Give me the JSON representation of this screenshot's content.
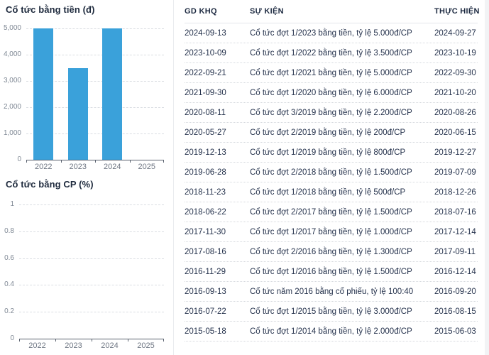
{
  "chart_data": [
    {
      "type": "bar",
      "title": "Cổ tức bằng tiền (đ)",
      "categories": [
        "2022",
        "2023",
        "2024",
        "2025"
      ],
      "values": [
        5000,
        3500,
        5000,
        0
      ],
      "ylim": [
        0,
        5000
      ],
      "yticks": [
        {
          "label": "5,000",
          "value": 5000
        },
        {
          "label": "4,000",
          "value": 4000
        },
        {
          "label": "3,000",
          "value": 3000
        },
        {
          "label": "2,000",
          "value": 2000
        },
        {
          "label": "1,000",
          "value": 1000
        },
        {
          "label": "0",
          "value": 0
        }
      ],
      "grid": "dashed-horizontal",
      "legend": "none",
      "bar_color": "#3aa1da"
    },
    {
      "type": "bar",
      "title": "Cổ tức bằng CP (%)",
      "categories": [
        "2022",
        "2023",
        "2024",
        "2025"
      ],
      "values": [
        0,
        0,
        0,
        0
      ],
      "ylim": [
        0,
        1
      ],
      "yticks": [
        {
          "label": "1",
          "value": 1
        },
        {
          "label": "0.8",
          "value": 0.8
        },
        {
          "label": "0.6",
          "value": 0.6
        },
        {
          "label": "0.4",
          "value": 0.4
        },
        {
          "label": "0.2",
          "value": 0.2
        },
        {
          "label": "0",
          "value": 0
        }
      ],
      "grid": "dashed-horizontal",
      "legend": "none",
      "bar_color": "#3aa1da"
    }
  ],
  "table": {
    "columns": [
      "GD KHQ",
      "SỰ KIỆN",
      "THỰC HIỆN"
    ],
    "rows": [
      [
        "2024-09-13",
        "Cổ tức đợt 1/2023 bằng tiền, tỷ lệ 5.000đ/CP",
        "2024-09-27"
      ],
      [
        "2023-10-09",
        "Cổ tức đợt 1/2022 bằng tiền, tỷ lệ 3.500đ/CP",
        "2023-10-19"
      ],
      [
        "2022-09-21",
        "Cổ tức đợt 1/2021 bằng tiền, tỷ lệ 5.000đ/CP",
        "2022-09-30"
      ],
      [
        "2021-09-30",
        "Cổ tức đợt 1/2020 bằng tiền, tỷ lệ 6.000đ/CP",
        "2021-10-20"
      ],
      [
        "2020-08-11",
        "Cổ tức đợt 3/2019 bằng tiền, tỷ lệ 2.200đ/CP",
        "2020-08-26"
      ],
      [
        "2020-05-27",
        "Cổ tức đợt 2/2019 bằng tiền, tỷ lệ 200đ/CP",
        "2020-06-15"
      ],
      [
        "2019-12-13",
        "Cổ tức đợt 1/2019 bằng tiền, tỷ lệ 800đ/CP",
        "2019-12-27"
      ],
      [
        "2019-06-28",
        "Cổ tức đợt 2/2018 bằng tiền, tỷ lệ 1.500đ/CP",
        "2019-07-09"
      ],
      [
        "2018-11-23",
        "Cổ tức đợt 1/2018 bằng tiền, tỷ lệ 500đ/CP",
        "2018-12-26"
      ],
      [
        "2018-06-22",
        "Cổ tức đợt 2/2017 bằng tiền, tỷ lệ 1.500đ/CP",
        "2018-07-16"
      ],
      [
        "2017-11-30",
        "Cổ tức đợt 1/2017 bằng tiền, tỷ lệ 1.000đ/CP",
        "2017-12-14"
      ],
      [
        "2017-08-16",
        "Cổ tức đợt 2/2016 bằng tiền, tỷ lệ 1.300đ/CP",
        "2017-09-11"
      ],
      [
        "2016-11-29",
        "Cổ tức đợt 1/2016 bằng tiền, tỷ lệ 1.500đ/CP",
        "2016-12-14"
      ],
      [
        "2016-09-13",
        "Cổ tức năm 2016 bằng cổ phiếu, tỷ lệ 100:40",
        "2016-09-20"
      ],
      [
        "2016-07-22",
        "Cổ tức đợt 1/2015 bằng tiền, tỷ lệ 3.000đ/CP",
        "2016-08-15"
      ],
      [
        "2015-05-18",
        "Cổ tức đợt 1/2014 bằng tiền, tỷ lệ 2.000đ/CP",
        "2015-06-03"
      ]
    ]
  },
  "colors": {
    "bar_blue": "#3aa1da",
    "heading_text": "#1e2a3d",
    "body_text": "#25324c"
  }
}
